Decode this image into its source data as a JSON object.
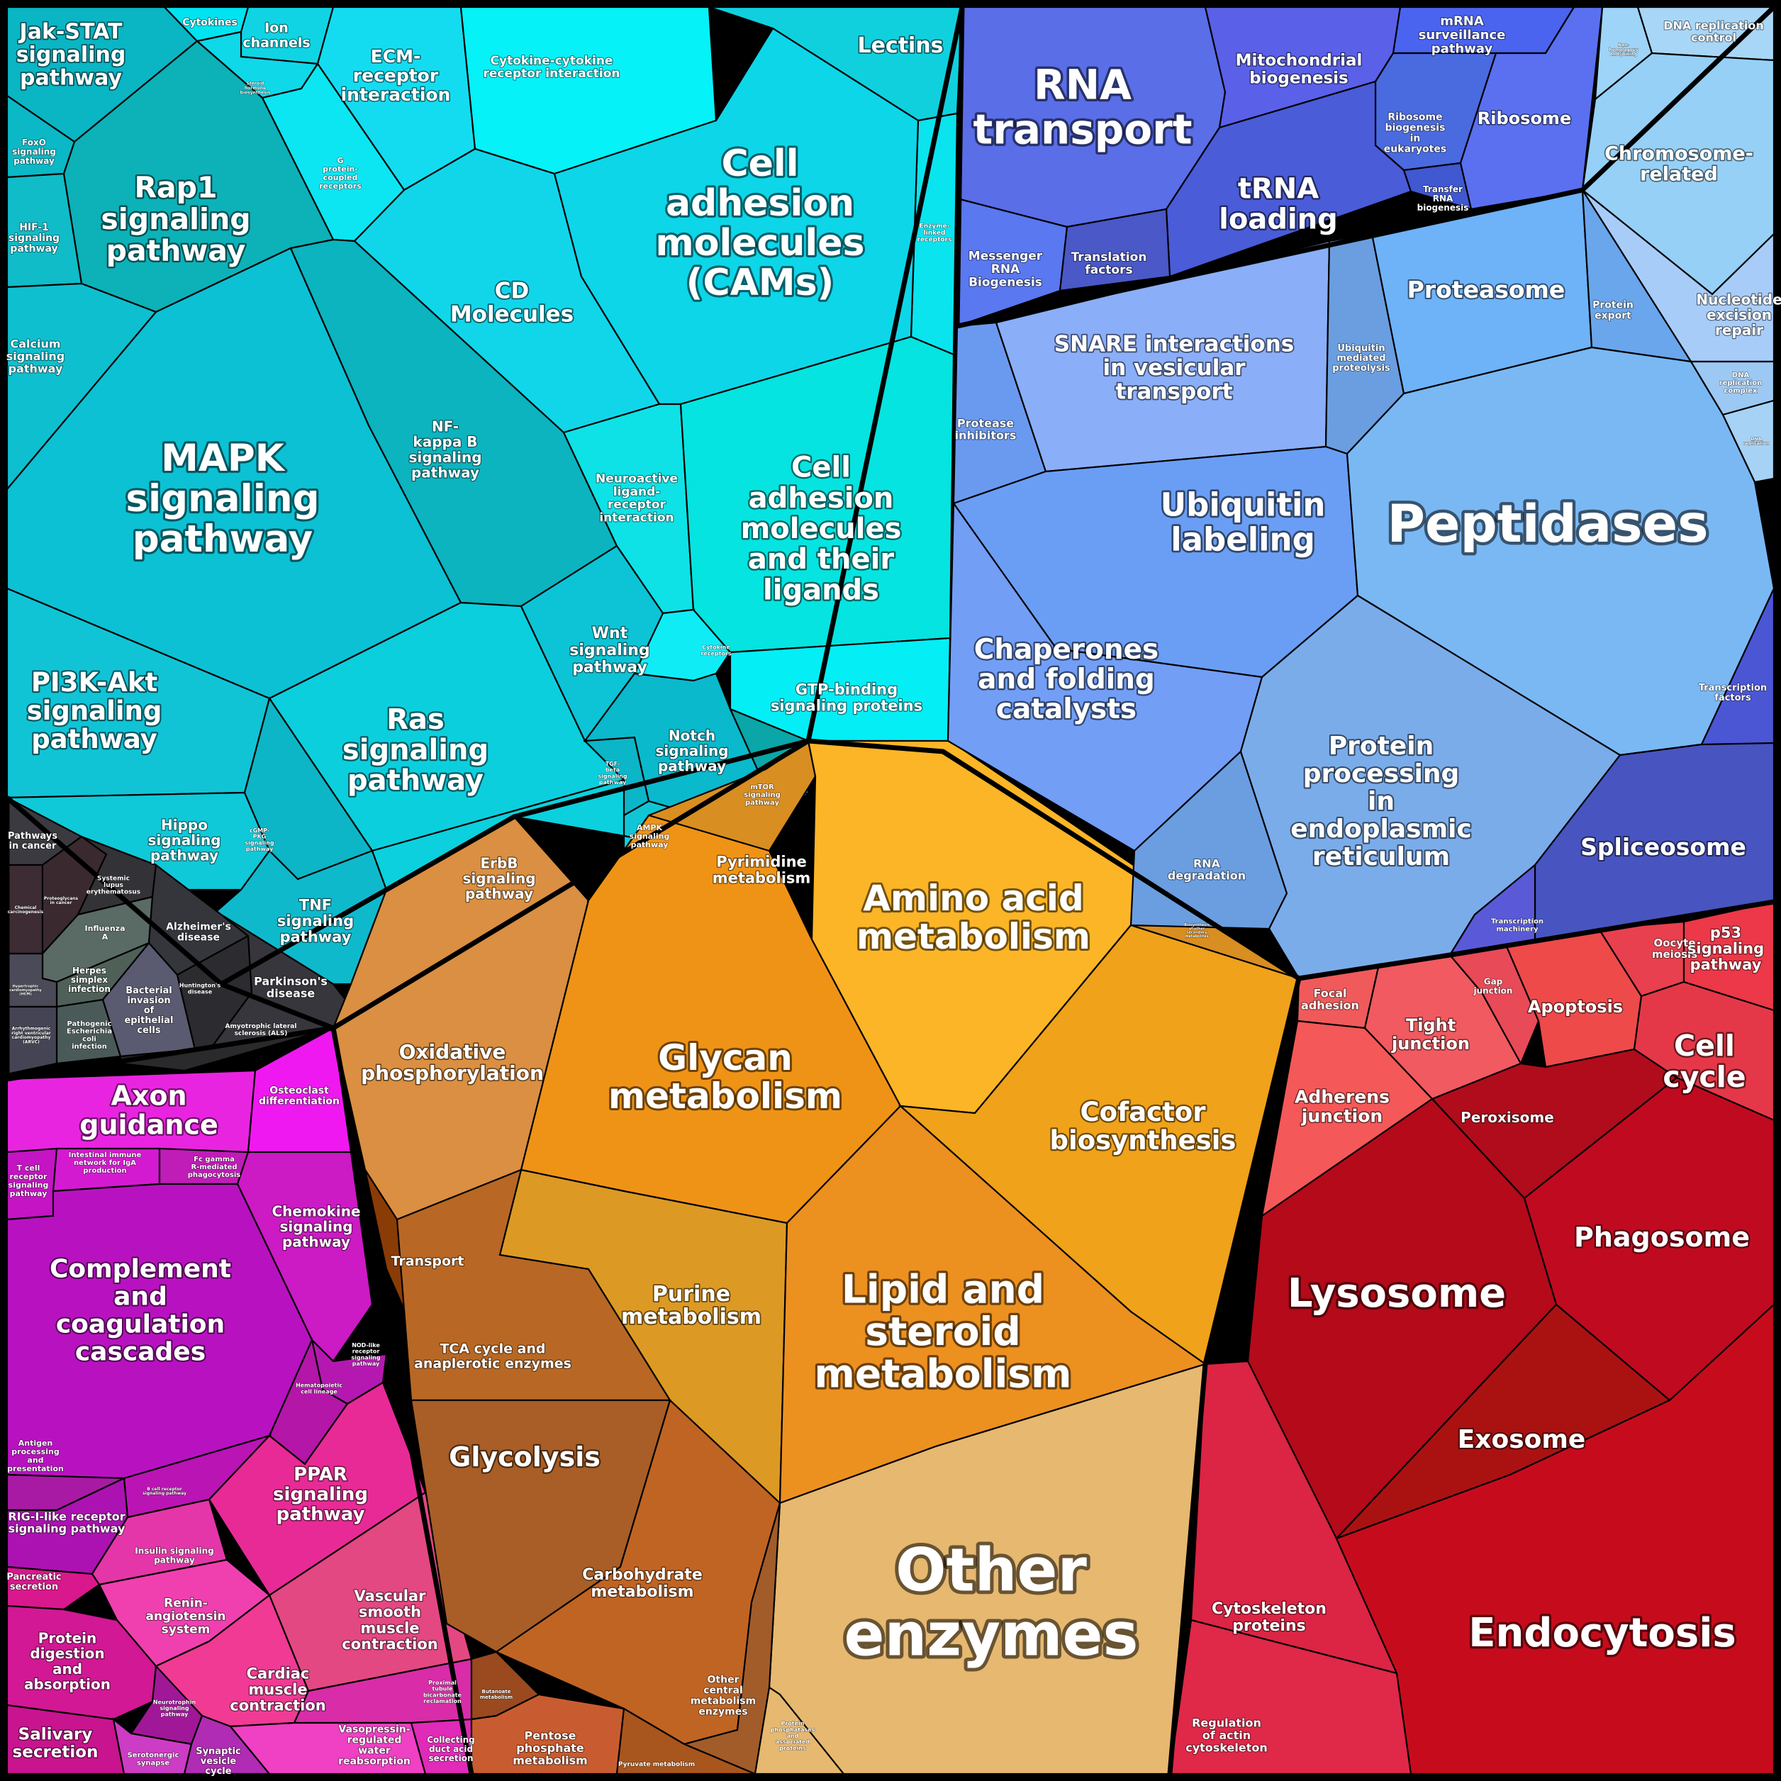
{
  "groups": {
    "signaling": "#17c9d6",
    "metabolism": "#f5a623",
    "genetic_info": "#6a8cf0",
    "cellular": "#e02030",
    "organismal": "#d318c8",
    "disease": "#3c3c44"
  },
  "cells": [
    {
      "id": "jak-stat",
      "label": "Jak-STAT\nsignaling\npathway",
      "color": "#0ab5c4"
    },
    {
      "id": "cytokines",
      "label": "Cytokines",
      "color": "#00e3f0"
    },
    {
      "id": "ion-channels",
      "label": "Ion\nchannels",
      "color": "#10d4e4"
    },
    {
      "id": "steroid-hormone",
      "label": "Steroid\nhormone\nbiosynthesis",
      "color": "#0fd8e8"
    },
    {
      "id": "ecm-receptor",
      "label": "ECM-\nreceptor\ninteraction",
      "color": "#14dcf0"
    },
    {
      "id": "g-protein",
      "label": "G\nprotein-\ncoupled\nreceptors",
      "color": "#0ce6f2"
    },
    {
      "id": "cytokine-cytokine",
      "label": "Cytokine-cytokine\nreceptor interaction",
      "color": "#05f2f8"
    },
    {
      "id": "lectins",
      "label": "Lectins",
      "color": "#11d0de"
    },
    {
      "id": "enzyme-linked",
      "label": "Enzyme-\nlinked\nreceptors",
      "color": "#0ae4ee"
    },
    {
      "id": "foxo",
      "label": "FoxO\nsignaling\npathway",
      "color": "#0bb8c6"
    },
    {
      "id": "rap1",
      "label": "Rap1\nsignaling\npathway",
      "color": "#0cb2b8"
    },
    {
      "id": "hif1",
      "label": "HIF-1\nsignaling\npathway",
      "color": "#0fbcc8"
    },
    {
      "id": "calcium",
      "label": "Calcium\nsignaling\npathway",
      "color": "#0ec0cf"
    },
    {
      "id": "cd-molecules",
      "label": "CD\nMolecules",
      "color": "#11d6ea"
    },
    {
      "id": "cams",
      "label": "Cell\nadhesion\nmolecules\n(CAMs)",
      "color": "#0dd6e8"
    },
    {
      "id": "mapk",
      "label": "MAPK\nsignaling\npathway",
      "color": "#0cc1d4"
    },
    {
      "id": "nfkb",
      "label": "NF-\nkappa B\nsignaling\npathway",
      "color": "#0bb4bf"
    },
    {
      "id": "neuroactive",
      "label": "Neuroactive\nligand-\nreceptor\ninteraction",
      "color": "#0ee2e6"
    },
    {
      "id": "cam-ligands",
      "label": "Cell\nadhesion\nmolecules\nand their\nligands",
      "color": "#05e4e0"
    },
    {
      "id": "pi3k",
      "label": "PI3K-Akt\nsignaling\npathway",
      "color": "#10c4d6"
    },
    {
      "id": "ras",
      "label": "Ras\nsignaling\npathway",
      "color": "#0ccfdd"
    },
    {
      "id": "wnt",
      "label": "Wnt\nsignaling\npathway",
      "color": "#0cc4d6"
    },
    {
      "id": "cytokine-receptors",
      "label": "Cytokine\nreceptors",
      "color": "#10ecf6"
    },
    {
      "id": "gtp-binding",
      "label": "GTP-binding\nsignaling proteins",
      "color": "#04eef6"
    },
    {
      "id": "tgf-beta",
      "label": "TGF-\nbeta\nsignaling\npathway",
      "color": "#0bb6c8"
    },
    {
      "id": "notch",
      "label": "Notch\nsignaling\npathway",
      "color": "#0ab9cc"
    },
    {
      "id": "mtor",
      "label": "mTOR\nsignaling\npathway",
      "color": "#0aa6a8"
    },
    {
      "id": "ampk",
      "label": "AMPK\nsignaling\npathway",
      "color": "#10c6d6"
    },
    {
      "id": "hippo",
      "label": "Hippo\nsignaling\npathway",
      "color": "#0fc9d8"
    },
    {
      "id": "cgmp",
      "label": "cGMP-\nPKG\nsignaling\npathway",
      "color": "#0cb6c6"
    },
    {
      "id": "tnf",
      "label": "TNF\nsignaling\npathway",
      "color": "#0fb9cc"
    },
    {
      "id": "erbb",
      "label": "ErbB\nsignaling\npathway",
      "color": "#0cd0dd"
    },
    {
      "id": "pathways-cancer",
      "label": "Pathways\nin cancer",
      "color": "#3a3a40"
    },
    {
      "id": "chemical-carcinogenesis",
      "label": "Chemical\ncarcinogenesis",
      "color": "#3e2c34"
    },
    {
      "id": "proteoglycans",
      "label": "Proteoglycans\nin cancer",
      "color": "#3a2a30"
    },
    {
      "id": "systemic-lupus",
      "label": "Systemic\nlupus\nerythematosus",
      "color": "#333236"
    },
    {
      "id": "influenza",
      "label": "Influenza\nA",
      "color": "#5a6a64"
    },
    {
      "id": "alzheimers",
      "label": "Alzheimer's\ndisease",
      "color": "#34363c"
    },
    {
      "id": "herpes",
      "label": "Herpes\nsimplex\ninfection",
      "color": "#4f6058"
    },
    {
      "id": "bacterial-invasion",
      "label": "Bacterial\ninvasion\nof\nepithelial\ncells",
      "color": "#5a5a70"
    },
    {
      "id": "huntingtons",
      "label": "Huntington's\ndisease",
      "color": "#2c2c30"
    },
    {
      "id": "parkinsons",
      "label": "Parkinson's\ndisease",
      "color": "#36363c"
    },
    {
      "id": "hypertrophic",
      "label": "Hypertrophic\ncardiomyopathy\n(HCM)",
      "color": "#4a4a58"
    },
    {
      "id": "pathogenic-ecoli",
      "label": "Pathogenic\nEscherichia\ncoli\ninfection",
      "color": "#4a5a58"
    },
    {
      "id": "arrhythmogenic",
      "label": "Arrhythmogenic\nright ventricular\ncardiomyopathy\n(ARVC)",
      "color": "#444454"
    },
    {
      "id": "als",
      "label": "Amyotrophic lateral\nsclerosis (ALS)",
      "color": "#2a2a2c"
    },
    {
      "id": "axon-guidance",
      "label": "Axon\nguidance",
      "color": "#e824e0"
    },
    {
      "id": "osteoclast",
      "label": "Osteoclast\ndifferentiation",
      "color": "#f018f0"
    },
    {
      "id": "tcell",
      "label": "T cell\nreceptor\nsignaling\npathway",
      "color": "#c414c4"
    },
    {
      "id": "iga",
      "label": "Intestinal immune\nnetwork for IgA\nproduction",
      "color": "#d41ad0"
    },
    {
      "id": "fc-gamma",
      "label": "Fc gamma\nR-mediated\nphagocytosis",
      "color": "#c01cb8"
    },
    {
      "id": "chemokine",
      "label": "Chemokine\nsignaling\npathway",
      "color": "#cc1ac4"
    },
    {
      "id": "complement",
      "label": "Complement\nand\ncoagulation\ncascades",
      "color": "#b812c0"
    },
    {
      "id": "nod-like",
      "label": "NOD-like\nreceptor\nsignaling\npathway",
      "color": "#b418b0"
    },
    {
      "id": "hematopoietic",
      "label": "Hematopoietic\ncell lineage",
      "color": "#b416a8"
    },
    {
      "id": "antigen",
      "label": "Antigen\nprocessing\nand\npresentation",
      "color": "#a81aa4"
    },
    {
      "id": "bcell",
      "label": "B cell receptor\nsignaling pathway",
      "color": "#ba14b4"
    },
    {
      "id": "rig-i",
      "label": "RIG-I-like receptor\nsignaling pathway",
      "color": "#ac12b2"
    },
    {
      "id": "ppar",
      "label": "PPAR\nsignaling\npathway",
      "color": "#e82a96"
    },
    {
      "id": "insulin",
      "label": "Insulin signaling\npathway",
      "color": "#e436a8"
    },
    {
      "id": "vascular",
      "label": "Vascular\nsmooth\nmuscle\ncontraction",
      "color": "#e34882"
    },
    {
      "id": "pancreatic",
      "label": "Pancreatic\nsecretion",
      "color": "#d8188c"
    },
    {
      "id": "renin",
      "label": "Renin-\nangiotensin\nsystem",
      "color": "#f040b0"
    },
    {
      "id": "protein-digestion",
      "label": "Protein\ndigestion\nand\nabsorption",
      "color": "#d21894"
    },
    {
      "id": "cardiac",
      "label": "Cardiac\nmuscle\ncontraction",
      "color": "#f03a94"
    },
    {
      "id": "neurotrophin",
      "label": "Neurotrophin\nsignaling\npathway",
      "color": "#a01898"
    },
    {
      "id": "proximal-tubule",
      "label": "Proximal\ntubule\nbicarbonate\nreclamation",
      "color": "#d82ca8"
    },
    {
      "id": "salivary",
      "label": "Salivary\nsecretion",
      "color": "#c8148e"
    },
    {
      "id": "serotonergic",
      "label": "Serotonergic\nsynapse",
      "color": "#cc3cc4"
    },
    {
      "id": "synaptic",
      "label": "Synaptic\nvesicle\ncycle",
      "color": "#b02cb4"
    },
    {
      "id": "vasopressin",
      "label": "Vasopressin-\nregulated\nwater\nreabsorption",
      "color": "#f040c4"
    },
    {
      "id": "collecting-duct",
      "label": "Collecting\nduct acid\nsecretion",
      "color": "#e02ab8"
    },
    {
      "id": "oxphos",
      "label": "Oxidative\nphosphorylation",
      "color": "#da8f42"
    },
    {
      "id": "transport",
      "label": "Transport",
      "color": "#8a3c06"
    },
    {
      "id": "pyrimidine",
      "label": "Pyrimidine\nmetabolism",
      "color": "#d88e20"
    },
    {
      "id": "amino-acid",
      "label": "Amino acid\nmetabolism",
      "color": "#fcb526"
    },
    {
      "id": "biosynth-other",
      "label": "Biosynthesis\nof other\nsecondary\nmetabolites",
      "color": "#d88e20"
    },
    {
      "id": "glycan",
      "label": "Glycan\nmetabolism",
      "color": "#ef9316"
    },
    {
      "id": "cofactor",
      "label": "Cofactor\nbiosynthesis",
      "color": "#efa21a"
    },
    {
      "id": "purine",
      "label": "Purine\nmetabolism",
      "color": "#dc9a24"
    },
    {
      "id": "lipid",
      "label": "Lipid and\nsteroid\nmetabolism",
      "color": "#ec9020"
    },
    {
      "id": "tca",
      "label": "TCA cycle and\nanaplerotic enzymes",
      "color": "#b86824"
    },
    {
      "id": "glycolysis",
      "label": "Glycolysis",
      "color": "#a85e26"
    },
    {
      "id": "carbohydrate",
      "label": "Carbohydrate\nmetabolism",
      "color": "#c06424"
    },
    {
      "id": "other-enzymes",
      "label": "Other\nenzymes",
      "color": "#e6b870"
    },
    {
      "id": "other-central",
      "label": "Other\ncentral\nmetabolism\nenzymes",
      "color": "#a25c2a"
    },
    {
      "id": "butanoate",
      "label": "Butanoate\nmetabolism",
      "color": "#9a4a1e"
    },
    {
      "id": "pentose",
      "label": "Pentose\nphosphate\nmetabolism",
      "color": "#c85c30"
    },
    {
      "id": "pyruvate",
      "label": "Pyruvate metabolism",
      "color": "#a8561e"
    },
    {
      "id": "protein-phosphatases",
      "label": "Protein\nphosphatases\nand\nassociated\nproteins",
      "color": "#e6b870"
    },
    {
      "id": "rna-transport",
      "label": "RNA\ntransport",
      "color": "#5a6ee8"
    },
    {
      "id": "mito-biogenesis",
      "label": "Mitochondrial\nbiogenesis",
      "color": "#5a60e8"
    },
    {
      "id": "mrna-surveillance",
      "label": "mRNA\nsurveillance\npathway",
      "color": "#4a64f0"
    },
    {
      "id": "ribosome-biogenesis",
      "label": "Ribosome\nbiogenesis\nin\neukaryotes",
      "color": "#4a6ae0"
    },
    {
      "id": "ribosome",
      "label": "Ribosome",
      "color": "#5a70f0"
    },
    {
      "id": "trna",
      "label": "tRNA\nloading",
      "color": "#4a5cd8"
    },
    {
      "id": "messenger-rna",
      "label": "Messenger\nRNA\nBiogenesis",
      "color": "#5a78f0"
    },
    {
      "id": "translation-factors",
      "label": "Translation\nfactors",
      "color": "#4a58c8"
    },
    {
      "id": "transfer-rna",
      "label": "Transfer\nRNA\nbiogenesis",
      "color": "#4058d0"
    },
    {
      "id": "non-homologous",
      "label": "Non-\nhomologous\nend-joining",
      "color": "#9ed4f8"
    },
    {
      "id": "dna-replication-control",
      "label": "DNA replication\ncontrol",
      "color": "#a8d6f6"
    },
    {
      "id": "chromosome",
      "label": "Chromosome-\nrelated",
      "color": "#96d0f6"
    },
    {
      "id": "nucleotide-excision",
      "label": "Nucleotide\nexcision\nrepair",
      "color": "#a8ccf8"
    },
    {
      "id": "dna-complex",
      "label": "DNA\nreplication\ncomplex",
      "color": "#9cc8f4"
    },
    {
      "id": "dna-replication",
      "label": "DNA\nreplication",
      "color": "#a6d2f6"
    },
    {
      "id": "protease-inhibitors",
      "label": "Protease\ninhibitors",
      "color": "#6a9af0"
    },
    {
      "id": "snare",
      "label": "SNARE interactions\nin vesicular\ntransport",
      "color": "#8aaef8"
    },
    {
      "id": "ubiq-proteolysis",
      "label": "Ubiquitin\nmediated\nproteolysis",
      "color": "#6a9ee0"
    },
    {
      "id": "proteasome",
      "label": "Proteasome",
      "color": "#6eb2f8"
    },
    {
      "id": "protein-export",
      "label": "Protein\nexport",
      "color": "#6aa6ec"
    },
    {
      "id": "ubiquitin",
      "label": "Ubiquitin\nlabeling",
      "color": "#6a9ef4"
    },
    {
      "id": "peptidases",
      "label": "Peptidases",
      "color": "#7ab8f4"
    },
    {
      "id": "chaperones",
      "label": "Chaperones\nand folding\ncatalysts",
      "color": "#729ef6"
    },
    {
      "id": "rna-degradation",
      "label": "RNA\ndegradation",
      "color": "#6a9ee0"
    },
    {
      "id": "protein-processing",
      "label": "Protein\nprocessing\nin\nendoplasmic\nreticulum",
      "color": "#7aacea"
    },
    {
      "id": "transcription-factors",
      "label": "Transcription\nfactors",
      "color": "#4a56d4"
    },
    {
      "id": "spliceosome",
      "label": "Spliceosome",
      "color": "#4854c0"
    },
    {
      "id": "transcription-machinery",
      "label": "Transcription\nmachinery",
      "color": "#5a5ad8"
    },
    {
      "id": "focal-adhesion",
      "label": "Focal\nadhesion",
      "color": "#f05a5a"
    },
    {
      "id": "tight-junction",
      "label": "Tight\njunction",
      "color": "#f05a60"
    },
    {
      "id": "gap-junction",
      "label": "Gap\njunction",
      "color": "#e84a58"
    },
    {
      "id": "apoptosis",
      "label": "Apoptosis",
      "color": "#ee4a4a"
    },
    {
      "id": "oocyte",
      "label": "Oocyte\nmeiosis",
      "color": "#e8404e"
    },
    {
      "id": "p53",
      "label": "p53\nsignaling\npathway",
      "color": "#ec3848"
    },
    {
      "id": "cell-cycle",
      "label": "Cell\ncycle",
      "color": "#e43848"
    },
    {
      "id": "adherens",
      "label": "Adherens\njunction",
      "color": "#f45858"
    },
    {
      "id": "peroxisome",
      "label": "Peroxisome",
      "color": "#b00c1c"
    },
    {
      "id": "phagosome",
      "label": "Phagosome",
      "color": "#c00a20"
    },
    {
      "id": "lysosome",
      "label": "Lysosome",
      "color": "#b40a1a"
    },
    {
      "id": "exosome",
      "label": "Exosome",
      "color": "#aa1212"
    },
    {
      "id": "cytoskeleton",
      "label": "Cytoskeleton\nproteins",
      "color": "#dc2444"
    },
    {
      "id": "endocytosis",
      "label": "Endocytosis",
      "color": "#c60c1c"
    },
    {
      "id": "regulation-actin",
      "label": "Regulation\nof actin\ncytoskeleton",
      "color": "#e02848"
    }
  ]
}
